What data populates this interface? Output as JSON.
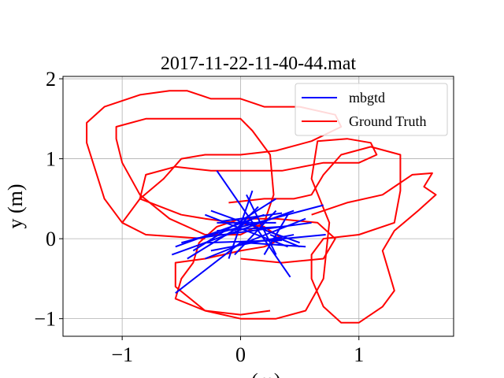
{
  "chart_data": {
    "type": "line",
    "title": "2017-11-22-11-40-44.mat",
    "xlabel": "x (m)",
    "ylabel": "y (m)",
    "xlim": [
      -1.5,
      1.8
    ],
    "ylim": [
      -1.22,
      2.03
    ],
    "xticks": [
      {
        "value": -1,
        "label": "−1"
      },
      {
        "value": 0,
        "label": "0"
      },
      {
        "value": 1,
        "label": "1"
      }
    ],
    "yticks": [
      {
        "value": -1,
        "label": "−1"
      },
      {
        "value": 0,
        "label": "0"
      },
      {
        "value": 1,
        "label": "1"
      },
      {
        "value": 2,
        "label": "2"
      }
    ],
    "grid": true,
    "legend_position": "upper right",
    "series": [
      {
        "name": "mbgtd",
        "color": "#0000ff",
        "segments": [
          [
            [
              -0.55,
              -0.68
            ],
            [
              0.0,
              -0.05
            ]
          ],
          [
            [
              -0.58,
              -0.2
            ],
            [
              0.45,
              0.35
            ]
          ],
          [
            [
              -0.2,
              0.85
            ],
            [
              0.42,
              -0.48
            ]
          ],
          [
            [
              -0.5,
              -0.05
            ],
            [
              0.7,
              0.42
            ]
          ],
          [
            [
              -0.25,
              0.35
            ],
            [
              0.5,
              -0.05
            ]
          ],
          [
            [
              -0.55,
              -0.1
            ],
            [
              0.2,
              0.3
            ]
          ],
          [
            [
              -0.3,
              -0.25
            ],
            [
              0.55,
              0.25
            ]
          ],
          [
            [
              -0.4,
              -0.15
            ],
            [
              0.3,
              0.5
            ]
          ],
          [
            [
              -0.1,
              -0.25
            ],
            [
              0.1,
              0.6
            ]
          ],
          [
            [
              0.0,
              -0.05
            ],
            [
              0.72,
              0.05
            ]
          ],
          [
            [
              -0.2,
              0.1
            ],
            [
              0.35,
              0.15
            ]
          ],
          [
            [
              -0.3,
              0.3
            ],
            [
              0.4,
              -0.1
            ]
          ],
          [
            [
              0.05,
              0.55
            ],
            [
              0.3,
              -0.2
            ]
          ],
          [
            [
              -0.15,
              0.22
            ],
            [
              0.35,
              0.32
            ]
          ],
          [
            [
              0.2,
              -0.2
            ],
            [
              0.4,
              0.3
            ]
          ],
          [
            [
              0.05,
              -0.05
            ],
            [
              0.55,
              -0.1
            ]
          ],
          [
            [
              -0.3,
              -0.05
            ],
            [
              0.35,
              -0.02
            ]
          ],
          [
            [
              -0.2,
              0.2
            ],
            [
              0.3,
              0.2
            ]
          ],
          [
            [
              0.5,
              -0.1
            ],
            [
              0.25,
              0.05
            ]
          ],
          [
            [
              -0.45,
              -0.25
            ],
            [
              0.1,
              0.25
            ]
          ],
          [
            [
              0.3,
              0.35
            ],
            [
              -0.05,
              -0.2
            ]
          ],
          [
            [
              -0.25,
              -0.15
            ],
            [
              0.45,
              0.05
            ]
          ],
          [
            [
              0.15,
              0.4
            ],
            [
              -0.05,
              0.1
            ]
          ],
          [
            [
              -0.4,
              0.0
            ],
            [
              0.6,
              0.2
            ]
          ]
        ]
      },
      {
        "name": "Ground Truth",
        "color": "#ff0000",
        "loops": [
          [
            [
              -0.3,
              0.0
            ],
            [
              -0.8,
              0.05
            ],
            [
              -1.0,
              0.2
            ],
            [
              -1.15,
              0.5
            ],
            [
              -1.3,
              1.2
            ],
            [
              -1.3,
              1.45
            ],
            [
              -1.15,
              1.65
            ],
            [
              -0.85,
              1.8
            ],
            [
              -0.6,
              1.85
            ],
            [
              -0.45,
              1.85
            ],
            [
              -0.25,
              1.75
            ],
            [
              0.0,
              1.75
            ],
            [
              0.2,
              1.65
            ],
            [
              0.5,
              1.65
            ],
            [
              0.8,
              1.55
            ],
            [
              0.85,
              1.4
            ],
            [
              0.6,
              1.22
            ],
            [
              0.3,
              1.1
            ],
            [
              0.0,
              1.05
            ],
            [
              -0.3,
              1.05
            ],
            [
              -0.5,
              1.0
            ],
            [
              -0.65,
              0.75
            ],
            [
              -0.85,
              0.5
            ],
            [
              -1.0,
              0.2
            ]
          ],
          [
            [
              -0.3,
              0.05
            ],
            [
              -0.6,
              0.25
            ],
            [
              -0.85,
              0.55
            ],
            [
              -1.0,
              0.95
            ],
            [
              -1.05,
              1.25
            ],
            [
              -1.05,
              1.4
            ],
            [
              -0.8,
              1.5
            ],
            [
              -0.4,
              1.5
            ],
            [
              0.0,
              1.5
            ],
            [
              0.1,
              1.35
            ],
            [
              0.25,
              1.05
            ],
            [
              0.28,
              0.55
            ],
            [
              0.2,
              0.2
            ],
            [
              0.0,
              0.05
            ],
            [
              -0.3,
              0.05
            ]
          ],
          [
            [
              -0.5,
              0.3
            ],
            [
              -0.85,
              0.5
            ],
            [
              -0.8,
              0.8
            ],
            [
              -0.55,
              0.9
            ],
            [
              -0.25,
              0.85
            ],
            [
              0.0,
              0.85
            ],
            [
              0.35,
              0.85
            ],
            [
              0.7,
              0.95
            ],
            [
              1.0,
              0.95
            ],
            [
              1.15,
              1.05
            ],
            [
              1.1,
              1.2
            ],
            [
              0.9,
              1.25
            ],
            [
              0.65,
              1.22
            ],
            [
              0.6,
              0.75
            ],
            [
              0.75,
              0.2
            ],
            [
              0.7,
              -0.5
            ],
            [
              0.55,
              -0.9
            ],
            [
              0.3,
              -1.0
            ],
            [
              0.0,
              -1.0
            ],
            [
              -0.3,
              -0.9
            ],
            [
              -0.55,
              -0.6
            ],
            [
              -0.55,
              -0.3
            ],
            [
              -0.3,
              -0.25
            ],
            [
              0.0,
              -0.15
            ],
            [
              0.2,
              -0.1
            ],
            [
              0.35,
              0.0
            ],
            [
              0.2,
              0.15
            ],
            [
              -0.05,
              0.2
            ],
            [
              -0.3,
              0.25
            ],
            [
              -0.5,
              0.3
            ]
          ],
          [
            [
              0.6,
              0.3
            ],
            [
              0.9,
              0.45
            ],
            [
              1.2,
              0.55
            ],
            [
              1.45,
              0.8
            ],
            [
              1.62,
              0.82
            ],
            [
              1.55,
              0.65
            ],
            [
              1.65,
              0.55
            ],
            [
              1.5,
              0.35
            ],
            [
              1.3,
              0.1
            ],
            [
              1.2,
              -0.15
            ],
            [
              1.25,
              -0.4
            ],
            [
              1.3,
              -0.65
            ],
            [
              1.2,
              -0.85
            ],
            [
              1.0,
              -1.05
            ],
            [
              0.85,
              -1.05
            ],
            [
              0.7,
              -0.85
            ],
            [
              0.6,
              -0.5
            ],
            [
              0.6,
              -0.2
            ],
            [
              0.7,
              0.0
            ],
            [
              1.0,
              0.05
            ],
            [
              1.3,
              0.2
            ],
            [
              1.35,
              0.6
            ],
            [
              1.35,
              1.05
            ],
            [
              1.1,
              1.15
            ],
            [
              0.85,
              1.05
            ],
            [
              0.7,
              0.8
            ],
            [
              0.6,
              0.55
            ],
            [
              0.45,
              0.5
            ],
            [
              0.2,
              0.5
            ],
            [
              -0.1,
              0.45
            ]
          ],
          [
            [
              0.0,
              -0.25
            ],
            [
              0.35,
              -0.3
            ],
            [
              0.7,
              -0.25
            ],
            [
              0.8,
              0.0
            ],
            [
              0.65,
              0.2
            ],
            [
              0.3,
              0.25
            ],
            [
              0.0,
              0.25
            ],
            [
              -0.2,
              0.15
            ],
            [
              -0.35,
              -0.05
            ],
            [
              -0.4,
              -0.3
            ],
            [
              -0.5,
              -0.5
            ],
            [
              -0.55,
              -0.75
            ],
            [
              -0.3,
              -0.9
            ],
            [
              0.0,
              -0.95
            ],
            [
              0.25,
              -0.9
            ]
          ]
        ]
      }
    ]
  }
}
